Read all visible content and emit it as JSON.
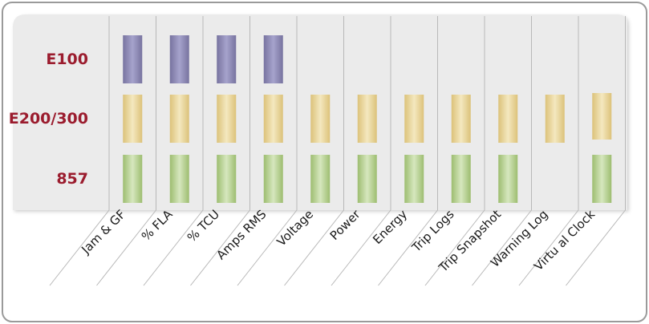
{
  "colors": {
    "frame_border": "#9a9a9a",
    "panel_bg": "#ebebeb",
    "divider": "#b8b8b8",
    "row_label": "#9b1c2e",
    "e100_fill": "#8c89b8",
    "e200_fill": "#e6d394",
    "857_fill": "#b5cf8c"
  },
  "rows": [
    {
      "id": "e100",
      "label": "E100"
    },
    {
      "id": "e200",
      "label": "E200/300"
    },
    {
      "id": "857",
      "label": "857"
    }
  ],
  "columns": [
    {
      "label": "Jam & GF",
      "present": [
        "e100",
        "e200",
        "857"
      ]
    },
    {
      "label": "% FLA",
      "present": [
        "e100",
        "e200",
        "857"
      ]
    },
    {
      "label": "% TCU",
      "present": [
        "e100",
        "e200",
        "857"
      ]
    },
    {
      "label": "Amps RMS",
      "present": [
        "e100",
        "e200",
        "857"
      ]
    },
    {
      "label": "Voltage",
      "present": [
        "e200",
        "857"
      ]
    },
    {
      "label": "Power",
      "present": [
        "e200",
        "857"
      ]
    },
    {
      "label": "Energy",
      "present": [
        "e200",
        "857"
      ]
    },
    {
      "label": "Trip Logs",
      "present": [
        "e200",
        "857"
      ]
    },
    {
      "label": "Trip Snapshot",
      "present": [
        "e200",
        "857"
      ]
    },
    {
      "label": "Warning Log",
      "present": [
        "e200"
      ]
    },
    {
      "label": "Virtu al Clock",
      "present": [
        "e200",
        "857"
      ]
    }
  ]
}
